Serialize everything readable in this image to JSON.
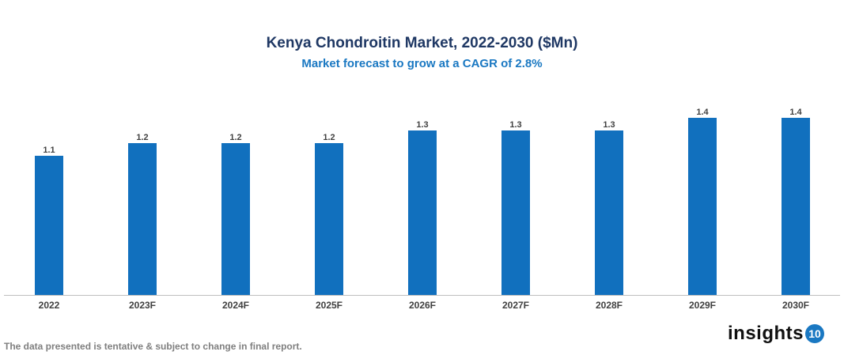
{
  "chart_data": {
    "type": "bar",
    "title": "Kenya Chondroitin Market, 2022-2030 ($Mn)",
    "subtitle": "Market forecast to grow at a CAGR of 2.8%",
    "categories": [
      "2022",
      "2023F",
      "2024F",
      "2025F",
      "2026F",
      "2027F",
      "2028F",
      "2029F",
      "2030F"
    ],
    "values": [
      1.1,
      1.2,
      1.2,
      1.2,
      1.3,
      1.3,
      1.3,
      1.4,
      1.4
    ],
    "xlabel": "",
    "ylabel": "",
    "ylim": [
      0,
      1.5
    ],
    "grid": false,
    "legend": "none",
    "bar_color": "#1170be"
  },
  "footer": {
    "note": "The data presented is tentative & subject to change in final report.",
    "logo_text": "insights",
    "logo_badge": "10"
  }
}
